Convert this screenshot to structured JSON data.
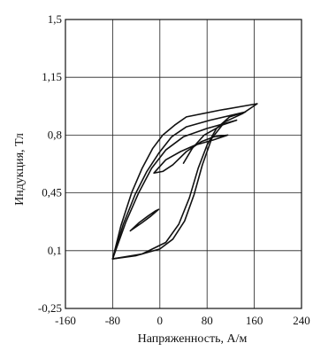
{
  "chart_data": {
    "type": "line",
    "title": "",
    "xlabel": "Напряженность, А/м",
    "ylabel": "Индукция, Тл",
    "xlim": [
      -160,
      240
    ],
    "ylim": [
      -0.25,
      1.5
    ],
    "x_ticks": [
      -160,
      -80,
      0,
      80,
      160,
      240
    ],
    "y_ticks": [
      -0.25,
      0.1,
      0.45,
      0.8,
      1.15,
      1.5
    ],
    "x_tick_labels": [
      "-160",
      "-80",
      "0",
      "80",
      "160",
      "240"
    ],
    "y_tick_labels": [
      "-0,25",
      "0,1",
      "0,45",
      "0,8",
      "1,15",
      "1,5"
    ],
    "grid": true,
    "series": [
      {
        "values": [
          [
            -80,
            0.05
          ],
          [
            -66,
            0.25
          ],
          [
            -48,
            0.45
          ],
          [
            -30,
            0.6
          ],
          [
            -12,
            0.72
          ],
          [
            5,
            0.8
          ],
          [
            25,
            0.86
          ],
          [
            45,
            0.91
          ],
          [
            100,
            0.95
          ],
          [
            165,
            0.99
          ],
          [
            140,
            0.93
          ],
          [
            110,
            0.88
          ],
          [
            88,
            0.78
          ],
          [
            72,
            0.62
          ],
          [
            58,
            0.44
          ],
          [
            42,
            0.28
          ],
          [
            22,
            0.17
          ],
          [
            0,
            0.11
          ],
          [
            -40,
            0.07
          ],
          [
            -80,
            0.05
          ]
        ]
      },
      {
        "values": [
          [
            -80,
            0.05
          ],
          [
            -62,
            0.26
          ],
          [
            -42,
            0.44
          ],
          [
            -22,
            0.58
          ],
          [
            -2,
            0.69
          ],
          [
            20,
            0.79
          ],
          [
            45,
            0.85
          ],
          [
            85,
            0.89
          ],
          [
            145,
            0.94
          ],
          [
            118,
            0.91
          ],
          [
            96,
            0.84
          ],
          [
            80,
            0.74
          ],
          [
            65,
            0.6
          ],
          [
            50,
            0.42
          ],
          [
            32,
            0.26
          ],
          [
            10,
            0.15
          ],
          [
            -30,
            0.08
          ],
          [
            -80,
            0.05
          ]
        ]
      },
      {
        "values": [
          [
            -80,
            0.05
          ],
          [
            -58,
            0.27
          ],
          [
            -36,
            0.45
          ],
          [
            -14,
            0.6
          ],
          [
            10,
            0.71
          ],
          [
            40,
            0.79
          ],
          [
            80,
            0.84
          ],
          [
            130,
            0.89
          ],
          [
            105,
            0.86
          ],
          [
            75,
            0.8
          ],
          [
            55,
            0.72
          ],
          [
            40,
            0.63
          ]
        ]
      },
      {
        "values": [
          [
            -10,
            0.57
          ],
          [
            10,
            0.65
          ],
          [
            35,
            0.7
          ],
          [
            60,
            0.74
          ],
          [
            90,
            0.77
          ],
          [
            115,
            0.8
          ],
          [
            92,
            0.79
          ],
          [
            70,
            0.76
          ],
          [
            45,
            0.7
          ],
          [
            22,
            0.62
          ],
          [
            5,
            0.58
          ],
          [
            -10,
            0.57
          ]
        ]
      },
      {
        "values": [
          [
            -50,
            0.22
          ],
          [
            -35,
            0.27
          ],
          [
            -20,
            0.31
          ],
          [
            -8,
            0.34
          ],
          [
            -2,
            0.35
          ],
          [
            -15,
            0.31
          ],
          [
            -30,
            0.27
          ],
          [
            -50,
            0.22
          ]
        ]
      }
    ]
  }
}
